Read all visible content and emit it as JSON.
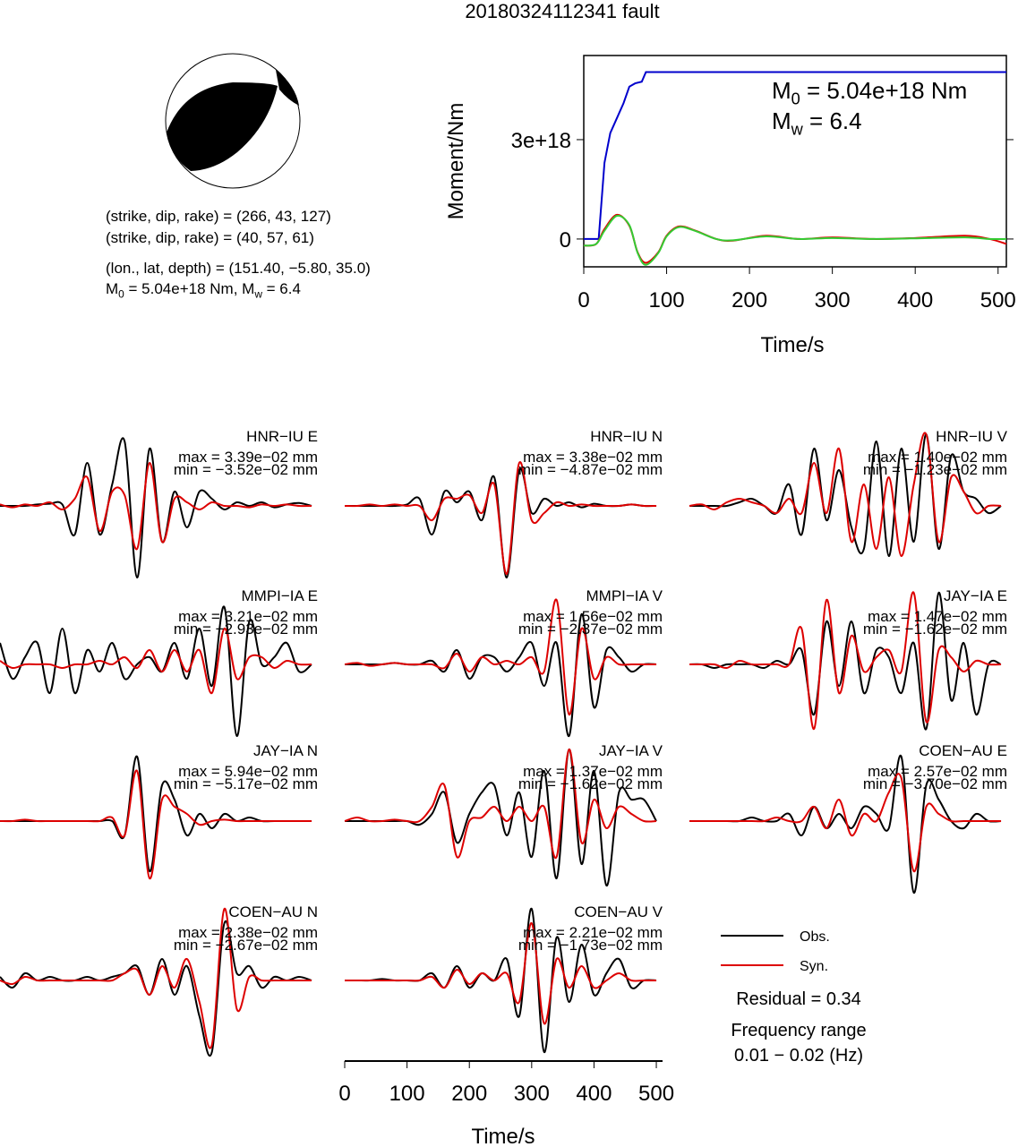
{
  "title": "20180324112341 fault",
  "mechanism": {
    "lines": [
      "(strike, dip, rake) = (266, 43, 127)",
      "(strike, dip, rake) = (40, 57, 61)",
      "(lon., lat, depth) = (151.40, −5.80, 35.0)"
    ],
    "moment_parts": [
      "M",
      "0",
      " = 5.04e+18 Nm, M",
      "w",
      " = 6.4"
    ]
  },
  "chart_data": [
    {
      "type": "line",
      "ylabel": "Moment/Nm",
      "xlabel": "Time/s",
      "xlim": [
        0,
        510
      ],
      "xticks": [
        0,
        100,
        200,
        300,
        400,
        500
      ],
      "ylim": [
        -840000000000000000,
        5540000000000000000
      ],
      "yticks": [
        0,
        {
          "value": 3000000000000000000,
          "label": "3e+18"
        }
      ],
      "annotations": [
        {
          "parts": [
            "M",
            "0",
            " = 5.04e+18 Nm"
          ]
        },
        {
          "parts": [
            "M",
            "w",
            " = 6.4"
          ]
        }
      ],
      "series": [
        {
          "color": "#0000cc",
          "smooth": false,
          "x": [
            0,
            18,
            25,
            32,
            40,
            48,
            55,
            62,
            70,
            75,
            80,
            510
          ],
          "values": [
            0,
            0,
            2300000000000000000,
            3200000000000000000,
            3650000000000000000,
            4100000000000000000,
            4600000000000000000,
            4700000000000000000,
            4750000000000000000,
            5040000000000000000,
            5040000000000000000,
            5040000000000000000
          ]
        },
        {
          "color": "#dd0000",
          "smooth": true,
          "x": [
            0,
            15,
            25,
            40,
            55,
            65,
            75,
            90,
            100,
            115,
            135,
            160,
            180,
            220,
            260,
            300,
            350,
            400,
            460,
            490,
            510
          ],
          "values": [
            -200000000000000000,
            -150000000000000000,
            300000000000000000,
            730000000000000000,
            400000000000000000,
            -400000000000000000,
            -720000000000000000,
            -400000000000000000,
            100000000000000000,
            380000000000000000,
            250000000000000000,
            0,
            -50000000000000000,
            100000000000000000,
            0,
            50000000000000000,
            0,
            30000000000000000,
            100000000000000000,
            0,
            -150000000000000000
          ]
        },
        {
          "color": "#33cc33",
          "smooth": true,
          "x": [
            0,
            15,
            25,
            40,
            55,
            65,
            75,
            90,
            100,
            115,
            135,
            160,
            180,
            220,
            260,
            300,
            350,
            400,
            460,
            490,
            510
          ],
          "values": [
            -200000000000000000,
            -150000000000000000,
            250000000000000000,
            700000000000000000,
            420000000000000000,
            -420000000000000000,
            -780000000000000000,
            -420000000000000000,
            80000000000000000,
            360000000000000000,
            240000000000000000,
            0,
            -40000000000000000,
            80000000000000000,
            0,
            30000000000000000,
            0,
            20000000000000000,
            50000000000000000,
            0,
            0
          ]
        }
      ]
    },
    {
      "type": "waveforms",
      "xlabel": "Time/s",
      "xlim": [
        0,
        510
      ],
      "xticks": [
        0,
        100,
        200,
        300,
        400,
        500
      ],
      "x": [
        0,
        20,
        40,
        60,
        80,
        100,
        120,
        140,
        160,
        180,
        200,
        220,
        240,
        260,
        280,
        300,
        320,
        340,
        360,
        380,
        400,
        420,
        440,
        460,
        480,
        500
      ],
      "series": [
        {
          "name": "Obs.",
          "color": "#000000"
        },
        {
          "name": "Syn.",
          "color": "#dd0000"
        }
      ],
      "notes": [
        "Residual = 0.34",
        "Frequency range",
        "0.01 − 0.02 (Hz)"
      ],
      "panels": [
        {
          "label": "HNR−IU E",
          "max": "max = 3.39e−02 mm",
          "min": "min = −3.52e−02 mm",
          "obs": [
            0,
            0,
            0,
            0.02,
            0.03,
            0.02,
            -0.4,
            0.6,
            -0.4,
            0.3,
            0.9,
            -1,
            0.8,
            -0.5,
            0.2,
            -0.3,
            0.2,
            0.1,
            -0.05,
            0.05,
            0,
            0.05,
            -0.02,
            0.02,
            0.04,
            0
          ],
          "syn": [
            0.02,
            -0.02,
            0.02,
            0,
            0.05,
            -0.05,
            0.1,
            0.4,
            -0.35,
            0.2,
            0.15,
            -0.6,
            0.6,
            -0.5,
            0.1,
            0.05,
            -0.05,
            0.05,
            0,
            0,
            -0.02,
            0.02,
            0,
            0.02,
            0,
            0
          ]
        },
        {
          "label": "HNR−IU N",
          "max": "max = 3.38e−02 mm",
          "min": "min = −4.87e−02 mm",
          "obs": [
            0,
            0,
            0,
            0,
            0,
            0.02,
            0.1,
            -0.4,
            0.2,
            0.05,
            0.2,
            -0.2,
            0.4,
            -1,
            0.5,
            -0.1,
            0.1,
            0,
            0.05,
            -0.02,
            0.03,
            0,
            0,
            0.02,
            0,
            0
          ],
          "syn": [
            0,
            0,
            0.02,
            0,
            0.02,
            0,
            0,
            -0.2,
            0.1,
            0.1,
            0.15,
            -0.1,
            0.3,
            -0.95,
            0.6,
            -0.2,
            -0.1,
            0.05,
            0,
            0.02,
            0,
            0,
            0,
            0.02,
            0,
            0
          ]
        },
        {
          "label": "HNR−IU V",
          "max": "max = 1.40e−02 mm",
          "min": "min = −1.23e−02 mm",
          "obs": [
            0,
            0,
            0,
            0,
            0.05,
            0.1,
            0,
            -0.1,
            0.3,
            -0.4,
            0.8,
            -0.2,
            0.5,
            -0.3,
            -0.6,
            0.9,
            -0.7,
            0.8,
            -0.5,
            1,
            -0.6,
            0.7,
            0.2,
            0.1,
            -0.1,
            0
          ],
          "syn": [
            0,
            0.02,
            -0.05,
            0.05,
            0.1,
            0.05,
            0,
            -0.1,
            0.1,
            -0.1,
            0.6,
            -0.1,
            0.8,
            -0.5,
            0.3,
            -0.6,
            0.4,
            -0.7,
            0.3,
            1,
            -0.5,
            0.4,
            0.2,
            -0.1,
            0,
            0
          ]
        },
        {
          "label": "MMPI−IA E",
          "max": "max = 3.21e−02 mm",
          "min": "min = −2.93e−02 mm",
          "obs": [
            0.3,
            -0.2,
            0.1,
            0.3,
            -0.4,
            0.5,
            -0.4,
            0.2,
            -0.1,
            0.3,
            -0.2,
            0,
            0.1,
            -0.1,
            0.3,
            -0.2,
            0.5,
            -0.3,
            0.8,
            -1,
            0.6,
            0,
            0.1,
            0.3,
            -0.1,
            0
          ],
          "syn": [
            0.05,
            -0.05,
            0,
            0,
            0,
            -0.05,
            0,
            0,
            0.05,
            0,
            0.1,
            -0.05,
            0.2,
            -0.1,
            0.2,
            -0.1,
            0.2,
            -0.4,
            0.5,
            -0.2,
            0.1,
            0.1,
            -0.05,
            0.05,
            0,
            0
          ]
        },
        {
          "label": "MMPI−IA V",
          "max": "max = 1.56e−02 mm",
          "min": "min = −2.37e−02 mm",
          "obs": [
            0,
            0,
            0,
            0,
            0.02,
            0,
            0,
            0.05,
            -0.1,
            0.2,
            -0.2,
            0.1,
            0.1,
            -0.1,
            0.1,
            0.3,
            -0.3,
            0.3,
            -1,
            0.7,
            -0.6,
            0.2,
            0.1,
            -0.1,
            0,
            0
          ],
          "syn": [
            0,
            0.02,
            -0.02,
            0,
            0.02,
            0,
            0,
            0,
            -0.05,
            0.15,
            -0.1,
            0.1,
            0,
            0.05,
            0,
            0.1,
            -0.1,
            0.9,
            -0.7,
            0.5,
            -0.2,
            0.1,
            0,
            0,
            0,
            0
          ]
        },
        {
          "label": "JAY−IA E",
          "max": "max = 1.47e−02 mm",
          "min": "min = −1.62e−02 mm",
          "obs": [
            0,
            0,
            -0.05,
            0,
            0,
            0,
            -0.05,
            0.05,
            0,
            0.2,
            -0.7,
            0.6,
            -0.3,
            0.6,
            -0.4,
            0.2,
            0.1,
            -0.4,
            0.3,
            -0.9,
            1,
            -0.5,
            0.3,
            -0.7,
            0,
            0
          ],
          "syn": [
            0,
            0,
            0,
            -0.05,
            0.05,
            0,
            0,
            0,
            0,
            0.5,
            -0.9,
            0.9,
            -0.4,
            0.4,
            -0.1,
            0.1,
            0.2,
            -0.1,
            1,
            -0.8,
            0.2,
            0.1,
            -0.1,
            0.05,
            0,
            0
          ]
        },
        {
          "label": "JAY−IA N",
          "max": "max = 5.94e−02 mm",
          "min": "min = −5.17e−02 mm",
          "obs": [
            0,
            0,
            0,
            0,
            0,
            0,
            0,
            0,
            0,
            0,
            -0.2,
            0.9,
            -0.7,
            0.5,
            0.3,
            -0.2,
            0.1,
            -0.1,
            0.1,
            0,
            0.05,
            0,
            0,
            0,
            0,
            0
          ],
          "syn": [
            0,
            0,
            0.02,
            0,
            0,
            0,
            0,
            0,
            0,
            0.05,
            -0.2,
            0.7,
            -0.8,
            0.3,
            0.2,
            0.1,
            -0.05,
            0,
            0.02,
            0,
            0,
            0,
            0,
            0,
            0,
            0
          ]
        },
        {
          "label": "JAY−IA V",
          "max": "max = 1.37e−02 mm",
          "min": "min = −1.62e−02 mm",
          "obs": [
            0,
            0,
            0,
            0,
            0,
            0,
            -0.05,
            0.1,
            0.4,
            -0.3,
            0.1,
            0.4,
            0.5,
            -0.2,
            0.4,
            -0.5,
            0.7,
            -0.8,
            1,
            -0.6,
            0.7,
            -0.9,
            0.4,
            0.3,
            0.3,
            0
          ],
          "syn": [
            0,
            0.05,
            0,
            0,
            0.02,
            0,
            0,
            0.2,
            0.5,
            -0.5,
            0,
            0.05,
            0.2,
            0,
            0.2,
            0,
            0.2,
            -0.5,
            1,
            -0.3,
            0.3,
            -0.1,
            0.2,
            0.1,
            0,
            0
          ]
        },
        {
          "label": "COEN−AU E",
          "max": "max = 2.57e−02 mm",
          "min": "min = −3.70e−02 mm",
          "obs": [
            0,
            0,
            0,
            0,
            0,
            0.05,
            0,
            0,
            0.1,
            -0.2,
            0.2,
            -0.1,
            0.1,
            -0.1,
            0.2,
            0.1,
            -0.1,
            0.9,
            -1,
            0.5,
            0.3,
            0,
            -0.1,
            0.1,
            0,
            0
          ],
          "syn": [
            0,
            0,
            0,
            0,
            0,
            0,
            0,
            0.05,
            0,
            0,
            0.2,
            -0.1,
            0.3,
            -0.2,
            0.1,
            0,
            0.4,
            0.6,
            -0.7,
            0.2,
            0.1,
            0,
            0,
            0,
            0,
            0
          ]
        },
        {
          "label": "COEN−AU N",
          "max": "max = 2.38e−02 mm",
          "min": "min = −2.67e−02 mm",
          "obs": [
            0.05,
            -0.1,
            0.1,
            0,
            0.05,
            0,
            0,
            0.05,
            0,
            0.05,
            0.1,
            0.2,
            -0.2,
            0.3,
            -0.2,
            0.2,
            -0.5,
            -1,
            0.8,
            0.1,
            0.2,
            -0.1,
            0.05,
            0,
            0.05,
            0
          ],
          "syn": [
            0,
            -0.05,
            0.05,
            0,
            0,
            0,
            0,
            0,
            0,
            0,
            0.1,
            0.15,
            -0.2,
            0.2,
            -0.1,
            0.3,
            -0.3,
            -0.9,
            1,
            -0.4,
            0.05,
            0,
            0,
            0,
            0,
            0
          ]
        },
        {
          "label": "COEN−AU V",
          "max": "max = 2.21e−02 mm",
          "min": "min = −1.73e−02 mm",
          "obs": [
            0,
            0,
            0,
            0.02,
            0,
            0,
            0,
            0.1,
            -0.1,
            0.2,
            -0.1,
            0.1,
            0,
            0.3,
            -0.5,
            1,
            -1,
            0.6,
            -0.3,
            0.5,
            -0.2,
            0.1,
            0.3,
            -0.1,
            0,
            0
          ],
          "syn": [
            0,
            0,
            0,
            0,
            0,
            0,
            0,
            0.05,
            -0.1,
            0.15,
            -0.05,
            0.1,
            0,
            0.1,
            -0.3,
            0.8,
            -0.6,
            0.3,
            -0.1,
            0.2,
            -0.1,
            0,
            0.1,
            0,
            0,
            0
          ]
        }
      ]
    }
  ]
}
